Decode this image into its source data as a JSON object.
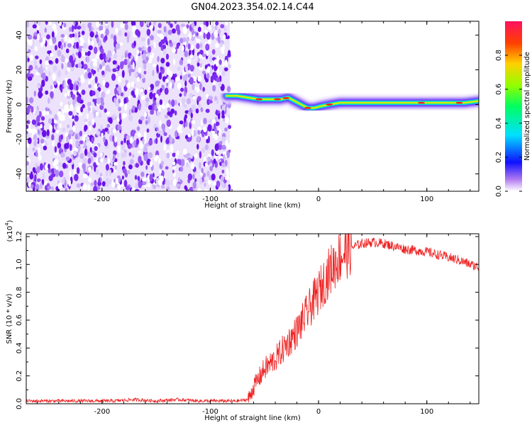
{
  "title": "GN04.2023.354.02.14.C44",
  "colors": {
    "snr_line": "#ee2222",
    "axis": "#000000"
  },
  "chart_data": [
    {
      "type": "heatmap",
      "xlabel": "Height of straight line (km)",
      "ylabel": "Frequency (Hz)",
      "xlim": [
        -270,
        148
      ],
      "ylim": [
        -50,
        48
      ],
      "xticks": [
        "-200",
        "-100",
        "0",
        "100"
      ],
      "yticks": [
        "40",
        "20",
        "0",
        "-20",
        "-40"
      ],
      "colorbar": {
        "label": "Normalized spectral amplitude",
        "range": [
          0,
          1
        ],
        "ticks": [
          "0.0",
          "0.2",
          "0.4",
          "0.6",
          "0.8"
        ]
      },
      "noise_region_x": [
        -270,
        -82
      ],
      "signal_ridge": {
        "x": [
          -85,
          -75,
          -65,
          -55,
          -45,
          -35,
          -28,
          -22,
          -16,
          -10,
          -4,
          2,
          10,
          20,
          40,
          60,
          80,
          100,
          120,
          135,
          148
        ],
        "y": [
          5,
          5,
          4,
          3,
          3,
          3,
          4,
          2,
          0,
          -2,
          -2,
          -1,
          0,
          1,
          1,
          1,
          1,
          1,
          1,
          1,
          2
        ]
      }
    },
    {
      "type": "line",
      "xlabel": "Height of straight line (km)",
      "ylabel": "SNR (10 * v/v)",
      "y_multiplier": "(x10",
      "y_multiplier_exp": "4",
      "y_multiplier_close": ")",
      "xlim": [
        -270,
        148
      ],
      "ylim": [
        0,
        1.22
      ],
      "xticks": [
        "-200",
        "-100",
        "0",
        "100"
      ],
      "yticks": [
        "0.0",
        "0.2",
        "0.4",
        "0.6",
        "0.8",
        "1.0",
        "1.2"
      ],
      "grid": false,
      "series": [
        {
          "x": [
            -270,
            -250,
            -230,
            -210,
            -190,
            -170,
            -150,
            -130,
            -110,
            -90,
            -75,
            -65,
            -60,
            -50,
            -40,
            -30,
            -20,
            -10,
            0,
            10,
            20,
            30,
            40,
            50,
            60,
            70,
            80,
            90,
            100,
            110,
            120,
            130,
            140,
            148
          ],
          "y": [
            0.02,
            0.02,
            0.02,
            0.02,
            0.02,
            0.03,
            0.02,
            0.03,
            0.02,
            0.02,
            0.02,
            0.03,
            0.12,
            0.25,
            0.32,
            0.42,
            0.52,
            0.66,
            0.8,
            0.95,
            1.06,
            1.12,
            1.15,
            1.16,
            1.15,
            1.13,
            1.11,
            1.1,
            1.09,
            1.07,
            1.05,
            1.03,
            1.0,
            0.98
          ]
        }
      ]
    }
  ]
}
